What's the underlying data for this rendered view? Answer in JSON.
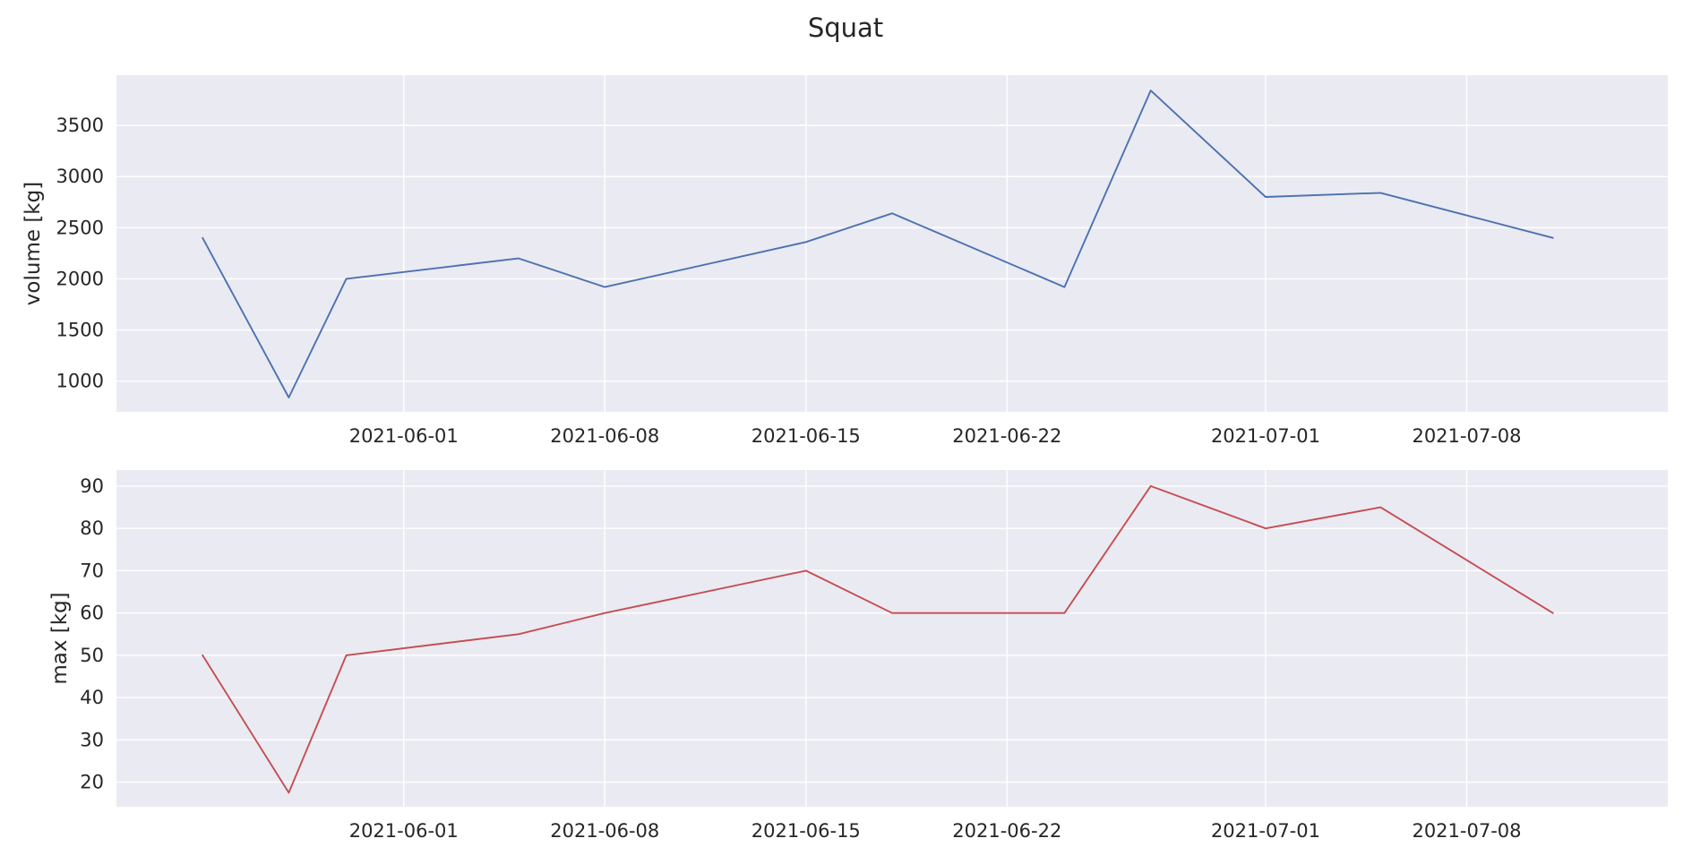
{
  "figure": {
    "title": "Squat"
  },
  "chart_data": [
    {
      "type": "line",
      "ylabel": "volume [kg]",
      "xlabel": "",
      "xlim": [
        "2021-05-22",
        "2021-07-15"
      ],
      "ylim": [
        700,
        3990
      ],
      "x_ticks": [
        "2021-06-01",
        "2021-06-08",
        "2021-06-15",
        "2021-06-22",
        "2021-07-01",
        "2021-07-08"
      ],
      "y_ticks": [
        1000,
        1500,
        2000,
        2500,
        3000,
        3500
      ],
      "grid": true,
      "series": [
        {
          "color": "#4c72b0",
          "x": [
            "2021-05-25",
            "2021-05-28",
            "2021-05-30",
            "2021-06-05",
            "2021-06-08",
            "2021-06-15",
            "2021-06-18",
            "2021-06-24",
            "2021-06-27",
            "2021-07-01",
            "2021-07-05",
            "2021-07-11"
          ],
          "y": [
            2400,
            840,
            2000,
            2200,
            1920,
            2360,
            2640,
            1920,
            3840,
            2800,
            2840,
            2400
          ]
        }
      ]
    },
    {
      "type": "line",
      "ylabel": "max [kg]",
      "xlabel": "",
      "xlim": [
        "2021-05-22",
        "2021-07-15"
      ],
      "ylim": [
        14.2,
        93.8
      ],
      "x_ticks": [
        "2021-06-01",
        "2021-06-08",
        "2021-06-15",
        "2021-06-22",
        "2021-07-01",
        "2021-07-08"
      ],
      "y_ticks": [
        20,
        30,
        40,
        50,
        60,
        70,
        80,
        90
      ],
      "grid": true,
      "series": [
        {
          "color": "#c44e52",
          "x": [
            "2021-05-25",
            "2021-05-28",
            "2021-05-30",
            "2021-06-05",
            "2021-06-08",
            "2021-06-15",
            "2021-06-18",
            "2021-06-24",
            "2021-06-27",
            "2021-07-01",
            "2021-07-05",
            "2021-07-11"
          ],
          "y": [
            50,
            17.5,
            50,
            55,
            60,
            70,
            60,
            60,
            90,
            80,
            85,
            60
          ]
        }
      ]
    }
  ]
}
